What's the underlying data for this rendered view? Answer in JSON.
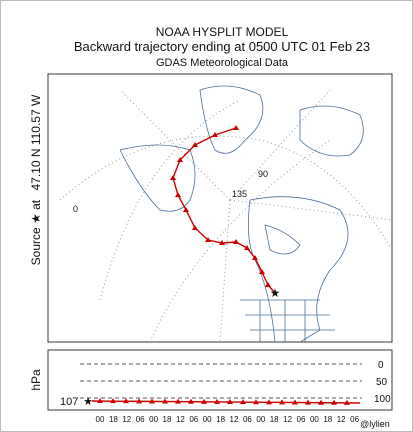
{
  "header": {
    "model": "NOAA HYSPLIT MODEL",
    "title": "Backward trajectory ending at 0500 UTC 01 Feb 23",
    "subtitle": "GDAS Meteorological Data"
  },
  "source": {
    "label": "Source ★ at",
    "location": "47.10 N 110.57 W"
  },
  "map": {
    "grid_labels": [
      "0",
      "90",
      "135"
    ]
  },
  "height_panel": {
    "axis_label": "hPa",
    "start_label": "107",
    "levels": [
      "0",
      "50",
      "100"
    ],
    "time_labels": [
      "00",
      "18",
      "12",
      "06",
      "00",
      "18",
      "12",
      "06",
      "00",
      "18",
      "12",
      "06",
      "00",
      "18",
      "12",
      "06",
      "00",
      "18",
      "12",
      "06"
    ]
  },
  "watermark": "@lylien"
}
